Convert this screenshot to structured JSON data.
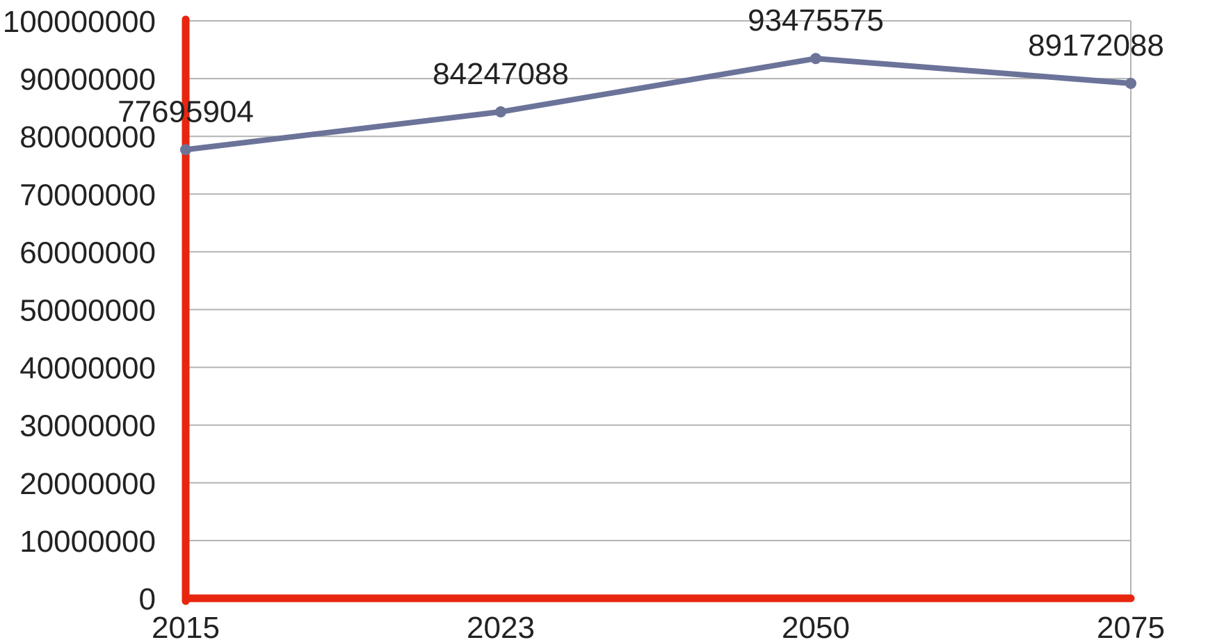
{
  "chart_data": {
    "type": "line",
    "categories": [
      "2015",
      "2023",
      "2050",
      "2075"
    ],
    "series": [
      {
        "values": [
          77695904,
          84247088,
          93475575,
          89172088
        ]
      }
    ],
    "data_labels": [
      "77695904",
      "84247088",
      "93475575",
      "89172088"
    ],
    "y_ticks": [
      0,
      10000000,
      20000000,
      30000000,
      40000000,
      50000000,
      60000000,
      70000000,
      80000000,
      90000000,
      100000000
    ],
    "y_tick_labels": [
      "0",
      "10000000",
      "20000000",
      "30000000",
      "40000000",
      "50000000",
      "60000000",
      "70000000",
      "80000000",
      "90000000",
      "100000000"
    ],
    "ylim": [
      0,
      100000000
    ],
    "grid": true,
    "legend": "none",
    "title": "",
    "xlabel": "",
    "ylabel": "",
    "colors": {
      "line": "#6b7399",
      "axis": "#e8250f",
      "grid": "#b3b3b3",
      "text": "#222222"
    }
  }
}
